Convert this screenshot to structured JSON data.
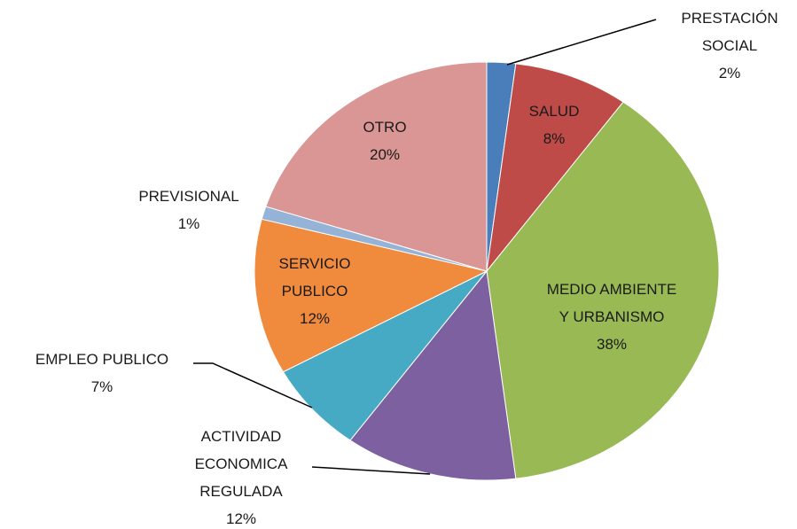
{
  "chart_data": {
    "type": "pie",
    "categories": [
      "PRESTACIÓN SOCIAL",
      "SALUD",
      "MEDIO AMBIENTE Y URBANISMO",
      "ACTIVIDAD ECONOMICA REGULADA",
      "EMPLEO PUBLICO",
      "SERVICIO PUBLICO",
      "PREVISIONAL",
      "OTRO"
    ],
    "values": [
      2,
      8,
      38,
      12,
      7,
      12,
      1,
      20
    ],
    "value_labels": [
      "2%",
      "8%",
      "38%",
      "12%",
      "7%",
      "12%",
      "1%",
      "20%"
    ],
    "colors": [
      "#4a7ebb",
      "#be4b48",
      "#98b954",
      "#7d60a0",
      "#46aac5",
      "#f08a3c",
      "#95b3d7",
      "#d99694"
    ]
  }
}
